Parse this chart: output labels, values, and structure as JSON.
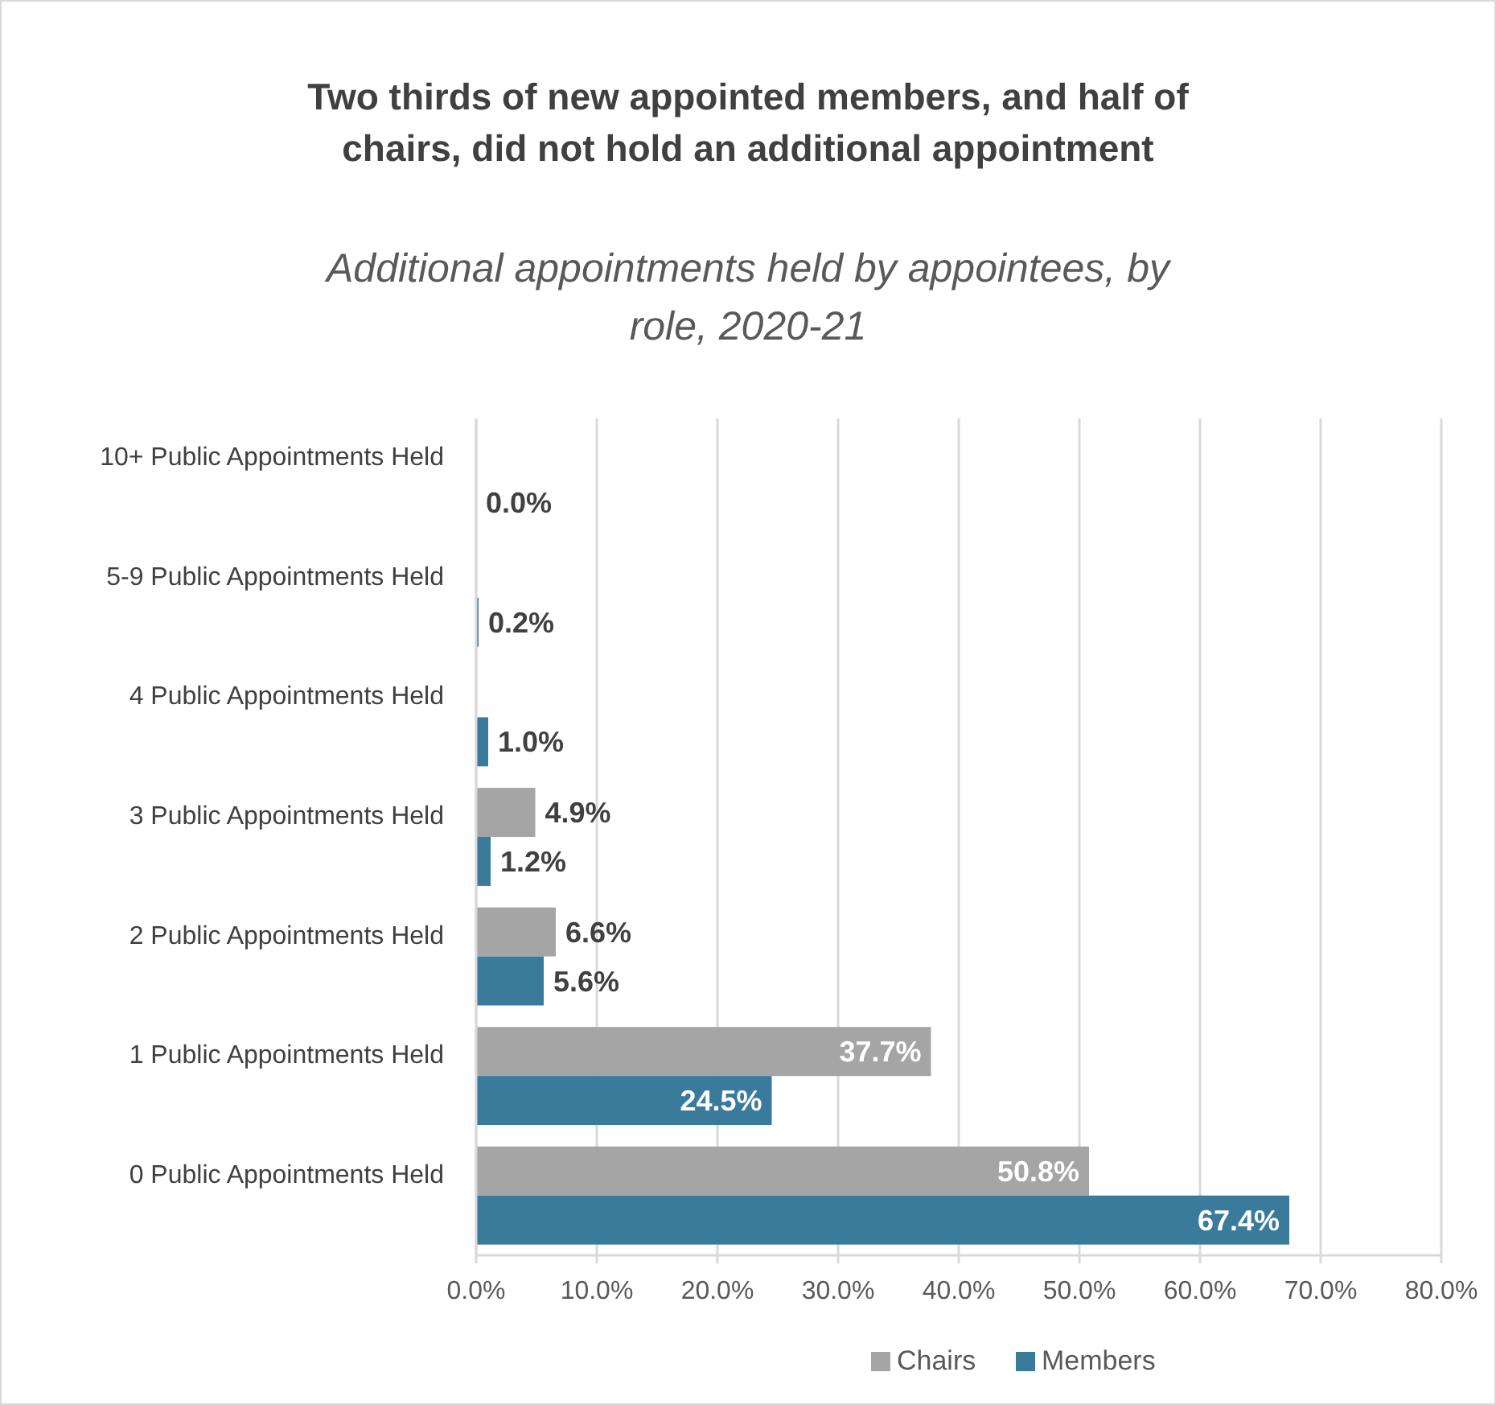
{
  "chart_data": {
    "type": "bar",
    "orientation": "horizontal",
    "title": "Two thirds of new appointed members, and half of chairs, did not hold an additional appointment",
    "subtitle": "Additional appointments held by appointees, by role, 2020-21",
    "categories": [
      "10+ Public Appointments Held",
      "5-9 Public Appointments Held",
      "4 Public Appointments Held",
      "3 Public Appointments Held",
      "2 Public Appointments Held",
      "1 Public Appointments Held",
      "0 Public Appointments Held"
    ],
    "series": [
      {
        "name": "Chairs",
        "color": "#a5a5a5",
        "values": [
          null,
          null,
          null,
          4.9,
          6.6,
          37.7,
          50.8
        ],
        "value_labels": [
          null,
          null,
          null,
          "4.9%",
          "6.6%",
          "37.7%",
          "50.8%"
        ]
      },
      {
        "name": "Members",
        "color": "#3a7a9a",
        "values": [
          0,
          0.2,
          1.0,
          1.2,
          5.6,
          24.5,
          67.4
        ],
        "value_labels": [
          "0.0%",
          "0.2%",
          "1.0%",
          "1.2%",
          "5.6%",
          "24.5%",
          "67.4%"
        ]
      }
    ],
    "xlim": [
      0,
      80
    ],
    "xticks": [
      {
        "value": 0,
        "label": "0.0%"
      },
      {
        "value": 10,
        "label": "10.0%"
      },
      {
        "value": 20,
        "label": "20.0%"
      },
      {
        "value": 30,
        "label": "30.0%"
      },
      {
        "value": 40,
        "label": "40.0%"
      },
      {
        "value": 50,
        "label": "50.0%"
      },
      {
        "value": 60,
        "label": "60.0%"
      },
      {
        "value": 70,
        "label": "70.0%"
      },
      {
        "value": 80,
        "label": "80.0%"
      }
    ],
    "grid": "x",
    "legend": "bottom"
  }
}
